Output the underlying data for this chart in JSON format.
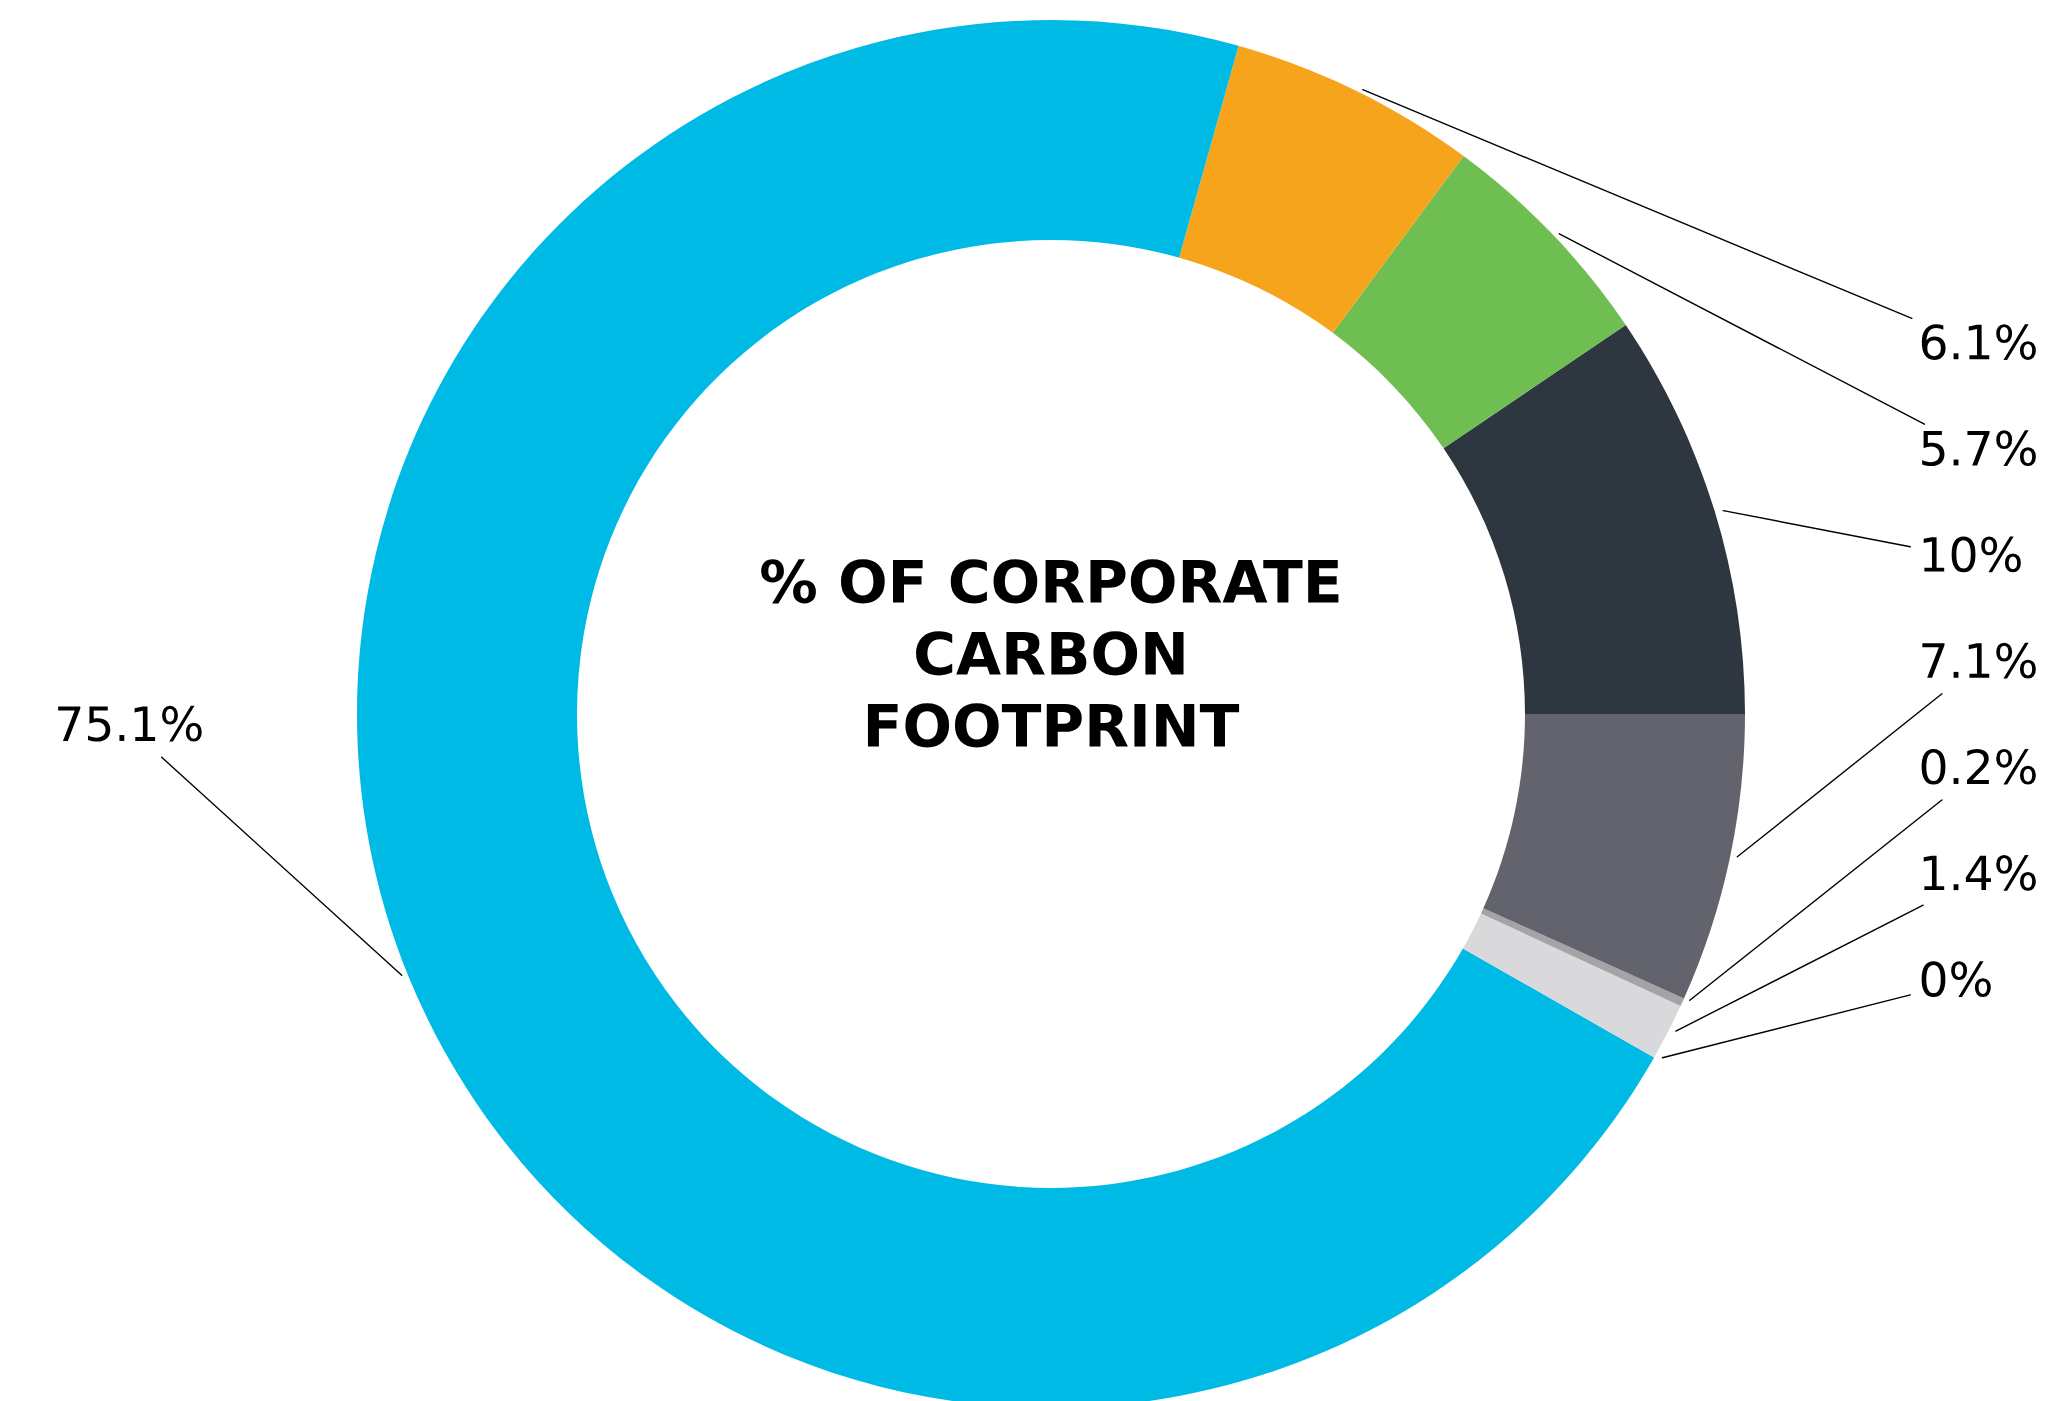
{
  "chart_data": {
    "type": "donut",
    "title": "% OF CORPORATE\nCARBON\nFOOTPRINT",
    "categories": [
      null,
      null,
      null,
      null,
      null,
      null,
      null,
      null
    ],
    "values": [
      10,
      5.7,
      6.1,
      75.1,
      0,
      1.4,
      0.2,
      7.1
    ],
    "value_labels": [
      "10%",
      "5.7%",
      "6.1%",
      "75.1%",
      "0%",
      "1.4%",
      "0.2%",
      "7.1%"
    ],
    "colors": [
      "#2e3740",
      "#6fbe52",
      "#f7a41d",
      "#00bae6",
      "#efefef",
      "#d9d9db",
      "#a3a3a8",
      "#63636e"
    ],
    "legend": false
  }
}
